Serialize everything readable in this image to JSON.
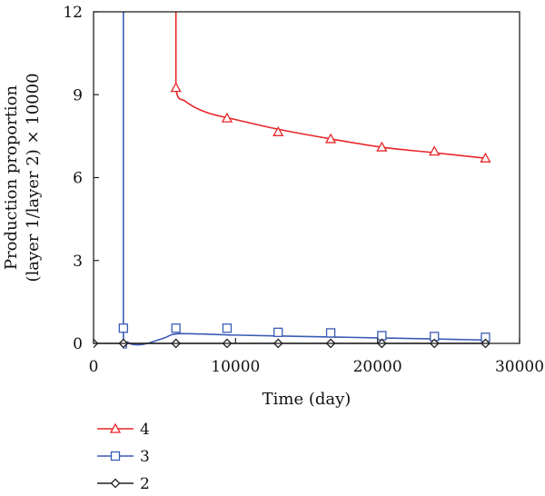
{
  "chart_data": {
    "type": "line",
    "xlabel": "Time (day)",
    "ylabel_lines": [
      "Production proportion",
      "(layer 1/layer 2) × 10000"
    ],
    "xlim": [
      0,
      30000
    ],
    "ylim": [
      0,
      12
    ],
    "xticks": [
      0,
      10000,
      20000,
      30000
    ],
    "yticks": [
      0,
      3,
      6,
      9,
      12
    ],
    "grid": false,
    "legend_placement": "bottom-left",
    "series": [
      {
        "name": "4",
        "color": "#e8262a",
        "marker": "triangle",
        "curve": [
          [
            5800,
            12
          ],
          [
            5800,
            9.25
          ],
          [
            6500,
            8.75
          ],
          [
            8000,
            8.35
          ],
          [
            10000,
            8.1
          ],
          [
            13000,
            7.75
          ],
          [
            16700,
            7.4
          ],
          [
            20300,
            7.1
          ],
          [
            24000,
            6.9
          ],
          [
            27600,
            6.7
          ]
        ],
        "points": [
          [
            5800,
            9.25
          ],
          [
            9400,
            8.15
          ],
          [
            13000,
            7.65
          ],
          [
            16700,
            7.4
          ],
          [
            20300,
            7.1
          ],
          [
            24000,
            6.95
          ],
          [
            27600,
            6.7
          ]
        ]
      },
      {
        "name": "3",
        "color": "#3a5bb5",
        "marker": "square",
        "curve": [
          [
            2100,
            12
          ],
          [
            2100,
            0.45
          ],
          [
            2400,
            0.05
          ],
          [
            3000,
            -0.05
          ],
          [
            3800,
            0.0
          ],
          [
            5000,
            0.2
          ],
          [
            6100,
            0.35
          ],
          [
            10000,
            0.3
          ],
          [
            15000,
            0.25
          ],
          [
            20000,
            0.2
          ],
          [
            25000,
            0.15
          ],
          [
            27600,
            0.12
          ]
        ],
        "points": [
          [
            2100,
            0.55
          ],
          [
            5800,
            0.55
          ],
          [
            9400,
            0.55
          ],
          [
            13000,
            0.4
          ],
          [
            16700,
            0.38
          ],
          [
            20300,
            0.28
          ],
          [
            24000,
            0.25
          ],
          [
            27600,
            0.22
          ]
        ]
      },
      {
        "name": "2",
        "color": "#222222",
        "marker": "diamond",
        "curve": [
          [
            0,
            0
          ],
          [
            27600,
            0
          ]
        ],
        "points": [
          [
            0,
            0
          ],
          [
            2100,
            0
          ],
          [
            5800,
            0
          ],
          [
            9400,
            0
          ],
          [
            13000,
            0
          ],
          [
            16700,
            0
          ],
          [
            20300,
            0
          ],
          [
            24000,
            0
          ],
          [
            27600,
            0
          ]
        ]
      }
    ]
  }
}
